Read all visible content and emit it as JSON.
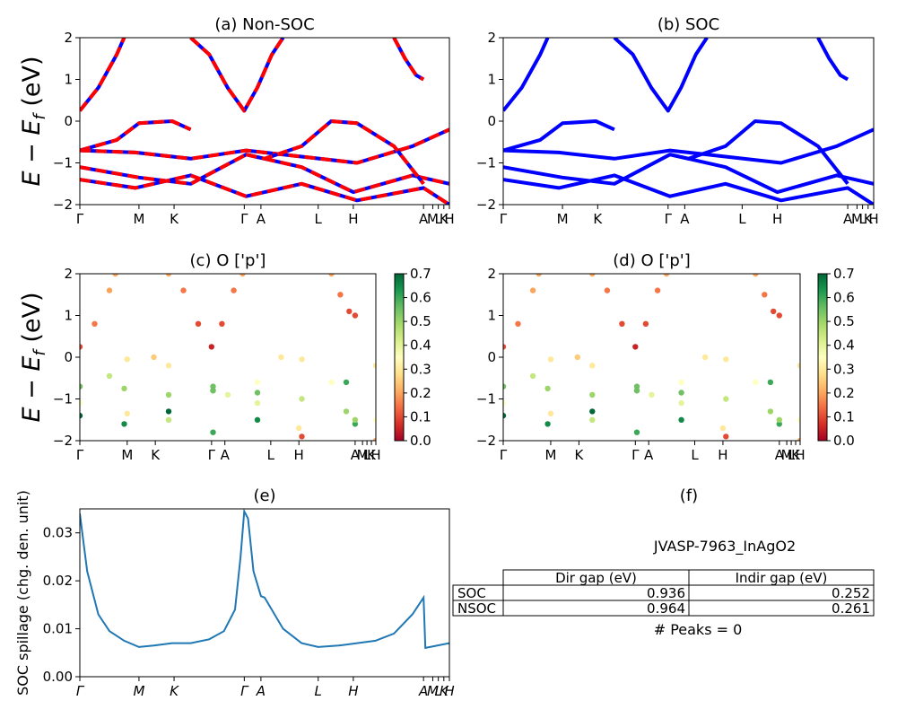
{
  "figure": {
    "ylabel": "E − E",
    "ylabel_sub": "f",
    "ylabel_unit": " (eV)"
  },
  "kpath": {
    "labels": [
      "Γ",
      "M",
      "K",
      "Γ",
      "A",
      "L",
      "H",
      "A",
      "M",
      "L",
      "K",
      "H"
    ],
    "positions": [
      0,
      0.16,
      0.255,
      0.445,
      0.49,
      0.645,
      0.74,
      0.93,
      0.955,
      0.97,
      0.985,
      1.0
    ],
    "show": [
      1,
      1,
      1,
      1,
      1,
      1,
      1,
      1,
      1,
      1,
      1,
      1
    ]
  },
  "colorbar": {
    "min": 0.0,
    "max": 0.7,
    "ticks": [
      "0.0",
      "0.1",
      "0.2",
      "0.3",
      "0.4",
      "0.5",
      "0.6",
      "0.7"
    ]
  },
  "table": {
    "title": "JVASP-7963_InAgO2",
    "headers": [
      "Dir gap (eV)",
      "Indir gap (eV)"
    ],
    "rows": [
      {
        "label": "SOC",
        "dir": "0.936",
        "indir": "0.252"
      },
      {
        "label": "NSOC",
        "dir": "0.964",
        "indir": "0.261"
      }
    ],
    "peaks": "# Peaks = 0"
  },
  "chart_data": [
    {
      "id": "a",
      "type": "line",
      "title": "(a) Non-SOC",
      "ylabel": "E − E_f (eV)",
      "ylim": [
        -2,
        2
      ],
      "yticks": [
        -2,
        -1,
        0,
        1,
        2
      ],
      "series": [
        {
          "x": [
            0,
            0.1,
            0.16,
            0.25,
            0.3
          ],
          "y": [
            -0.7,
            -0.45,
            -0.05,
            0.0,
            -0.2
          ]
        },
        {
          "x": [
            0,
            0.15,
            0.3,
            0.45,
            0.6,
            0.75,
            0.9,
            1.0
          ],
          "y": [
            -0.7,
            -0.75,
            -0.9,
            -0.7,
            -0.85,
            -1.0,
            -0.6,
            -0.2
          ]
        },
        {
          "x": [
            0,
            0.16,
            0.3,
            0.45,
            0.6,
            0.74,
            0.9,
            1.0
          ],
          "y": [
            -1.1,
            -1.35,
            -1.5,
            -0.8,
            -1.1,
            -1.7,
            -1.3,
            -1.5
          ]
        },
        {
          "x": [
            0,
            0.15,
            0.3,
            0.45,
            0.6,
            0.75,
            0.93,
            1.0
          ],
          "y": [
            -1.4,
            -1.6,
            -1.3,
            -1.8,
            -1.5,
            -1.9,
            -1.6,
            -2.0
          ]
        },
        {
          "x": [
            0.45,
            0.5,
            0.6,
            0.68,
            0.75,
            0.85,
            0.93
          ],
          "y": [
            -0.8,
            -0.9,
            -0.6,
            0.0,
            -0.05,
            -0.6,
            -1.5
          ]
        },
        {
          "x": [
            0.0,
            0.05,
            0.1,
            0.12
          ],
          "y": [
            0.25,
            0.8,
            1.6,
            2.0
          ]
        },
        {
          "x": [
            0.3,
            0.35,
            0.4,
            0.445,
            0.48,
            0.52,
            0.55
          ],
          "y": [
            2.0,
            1.6,
            0.8,
            0.25,
            0.8,
            1.6,
            2.0
          ]
        },
        {
          "x": [
            0.85,
            0.88,
            0.91,
            0.93
          ],
          "y": [
            2.0,
            1.5,
            1.1,
            1.0
          ]
        }
      ]
    },
    {
      "id": "b",
      "type": "line",
      "title": "(b) SOC",
      "ylim": [
        -2,
        2
      ],
      "yticks": [
        -2,
        -1,
        0,
        1,
        2
      ],
      "series": [
        {
          "x": [
            0,
            0.1,
            0.16,
            0.25,
            0.3
          ],
          "y": [
            -0.7,
            -0.45,
            -0.05,
            0.0,
            -0.2
          ]
        },
        {
          "x": [
            0,
            0.15,
            0.3,
            0.45,
            0.6,
            0.75,
            0.9,
            1.0
          ],
          "y": [
            -0.7,
            -0.75,
            -0.9,
            -0.7,
            -0.85,
            -1.0,
            -0.6,
            -0.2
          ]
        },
        {
          "x": [
            0,
            0.16,
            0.3,
            0.45,
            0.6,
            0.74,
            0.9,
            1.0
          ],
          "y": [
            -1.1,
            -1.35,
            -1.5,
            -0.8,
            -1.1,
            -1.7,
            -1.3,
            -1.5
          ]
        },
        {
          "x": [
            0,
            0.15,
            0.3,
            0.45,
            0.6,
            0.75,
            0.93,
            1.0
          ],
          "y": [
            -1.4,
            -1.6,
            -1.3,
            -1.8,
            -1.5,
            -1.9,
            -1.6,
            -2.0
          ]
        },
        {
          "x": [
            0.45,
            0.5,
            0.6,
            0.68,
            0.75,
            0.85,
            0.93
          ],
          "y": [
            -0.8,
            -0.9,
            -0.6,
            0.0,
            -0.05,
            -0.6,
            -1.5
          ]
        },
        {
          "x": [
            0.0,
            0.05,
            0.1,
            0.12
          ],
          "y": [
            0.25,
            0.8,
            1.6,
            2.0
          ]
        },
        {
          "x": [
            0.3,
            0.35,
            0.4,
            0.445,
            0.48,
            0.52,
            0.55
          ],
          "y": [
            2.0,
            1.6,
            0.8,
            0.25,
            0.8,
            1.6,
            2.0
          ]
        },
        {
          "x": [
            0.85,
            0.88,
            0.91,
            0.93
          ],
          "y": [
            2.0,
            1.5,
            1.1,
            1.0
          ]
        }
      ]
    },
    {
      "id": "c",
      "type": "scatter",
      "title": "(c)  O ['p']",
      "ylabel": "E − E_f (eV)",
      "ylim": [
        -2,
        2
      ],
      "yticks": [
        -2,
        -1,
        0,
        1,
        2
      ],
      "series": [
        {
          "x": [
            0,
            0.1,
            0.16,
            0.25,
            0.3
          ],
          "y": [
            -0.7,
            -0.45,
            -0.05,
            0.0,
            -0.2
          ],
          "c": [
            0.5,
            0.45,
            0.3,
            0.25,
            0.3
          ]
        },
        {
          "x": [
            0,
            0.15,
            0.3,
            0.45,
            0.6,
            0.75,
            0.9,
            1.0
          ],
          "y": [
            -0.7,
            -0.75,
            -0.9,
            -0.7,
            -0.85,
            -1.0,
            -0.6,
            -0.2
          ],
          "c": [
            0.55,
            0.5,
            0.5,
            0.55,
            0.55,
            0.45,
            0.6,
            0.3
          ]
        },
        {
          "x": [
            0,
            0.16,
            0.3,
            0.45,
            0.6,
            0.74,
            0.9,
            1.0
          ],
          "y": [
            -1.1,
            -1.35,
            -1.5,
            -0.8,
            -1.1,
            -1.7,
            -1.3,
            -1.5
          ],
          "c": [
            0.35,
            0.3,
            0.45,
            0.55,
            0.4,
            0.3,
            0.5,
            0.35
          ]
        },
        {
          "x": [
            0,
            0.15,
            0.3,
            0.45,
            0.6,
            0.75,
            0.93,
            1.0
          ],
          "y": [
            -1.4,
            -1.6,
            -1.3,
            -1.8,
            -1.5,
            -1.9,
            -1.6,
            -2.0
          ],
          "c": [
            0.7,
            0.65,
            0.7,
            0.6,
            0.65,
            0.1,
            0.6,
            0.2
          ]
        },
        {
          "x": [
            0.45,
            0.5,
            0.6,
            0.68,
            0.75,
            0.85,
            0.93
          ],
          "y": [
            -0.8,
            -0.9,
            -0.6,
            0.0,
            -0.05,
            -0.6,
            -1.5
          ],
          "c": [
            0.55,
            0.4,
            0.35,
            0.3,
            0.3,
            0.35,
            0.5
          ]
        },
        {
          "x": [
            0.0,
            0.05,
            0.1,
            0.12
          ],
          "y": [
            0.25,
            0.8,
            1.6,
            2.0
          ],
          "c": [
            0.1,
            0.15,
            0.2,
            0.2
          ]
        },
        {
          "x": [
            0.3,
            0.35,
            0.4,
            0.445,
            0.48,
            0.52,
            0.55
          ],
          "y": [
            2.0,
            1.6,
            0.8,
            0.25,
            0.8,
            1.6,
            2.0
          ],
          "c": [
            0.2,
            0.15,
            0.1,
            0.05,
            0.1,
            0.15,
            0.2
          ]
        },
        {
          "x": [
            0.85,
            0.88,
            0.91,
            0.93
          ],
          "y": [
            2.0,
            1.5,
            1.1,
            1.0
          ],
          "c": [
            0.2,
            0.15,
            0.1,
            0.1
          ]
        }
      ]
    },
    {
      "id": "d",
      "type": "scatter",
      "title": "(d) O ['p']",
      "ylim": [
        -2,
        2
      ],
      "yticks": [
        -2,
        -1,
        0,
        1,
        2
      ],
      "series": [
        {
          "x": [
            0,
            0.1,
            0.16,
            0.25,
            0.3
          ],
          "y": [
            -0.7,
            -0.45,
            -0.05,
            0.0,
            -0.2
          ],
          "c": [
            0.5,
            0.45,
            0.3,
            0.25,
            0.3
          ]
        },
        {
          "x": [
            0,
            0.15,
            0.3,
            0.45,
            0.6,
            0.75,
            0.9,
            1.0
          ],
          "y": [
            -0.7,
            -0.75,
            -0.9,
            -0.7,
            -0.85,
            -1.0,
            -0.6,
            -0.2
          ],
          "c": [
            0.55,
            0.5,
            0.5,
            0.55,
            0.55,
            0.45,
            0.6,
            0.3
          ]
        },
        {
          "x": [
            0,
            0.16,
            0.3,
            0.45,
            0.6,
            0.74,
            0.9,
            1.0
          ],
          "y": [
            -1.1,
            -1.35,
            -1.5,
            -0.8,
            -1.1,
            -1.7,
            -1.3,
            -1.5
          ],
          "c": [
            0.35,
            0.3,
            0.45,
            0.55,
            0.4,
            0.3,
            0.5,
            0.35
          ]
        },
        {
          "x": [
            0,
            0.15,
            0.3,
            0.45,
            0.6,
            0.75,
            0.93,
            1.0
          ],
          "y": [
            -1.4,
            -1.6,
            -1.3,
            -1.8,
            -1.5,
            -1.9,
            -1.6,
            -2.0
          ],
          "c": [
            0.7,
            0.65,
            0.7,
            0.6,
            0.65,
            0.1,
            0.6,
            0.2
          ]
        },
        {
          "x": [
            0.45,
            0.5,
            0.6,
            0.68,
            0.75,
            0.85,
            0.93
          ],
          "y": [
            -0.8,
            -0.9,
            -0.6,
            0.0,
            -0.05,
            -0.6,
            -1.5
          ],
          "c": [
            0.55,
            0.4,
            0.35,
            0.3,
            0.3,
            0.35,
            0.5
          ]
        },
        {
          "x": [
            0.0,
            0.05,
            0.1,
            0.12
          ],
          "y": [
            0.25,
            0.8,
            1.6,
            2.0
          ],
          "c": [
            0.1,
            0.15,
            0.2,
            0.2
          ]
        },
        {
          "x": [
            0.3,
            0.35,
            0.4,
            0.445,
            0.48,
            0.52,
            0.55
          ],
          "y": [
            2.0,
            1.6,
            0.8,
            0.25,
            0.8,
            1.6,
            2.0
          ],
          "c": [
            0.2,
            0.15,
            0.1,
            0.05,
            0.1,
            0.15,
            0.2
          ]
        },
        {
          "x": [
            0.85,
            0.88,
            0.91,
            0.93
          ],
          "y": [
            2.0,
            1.5,
            1.1,
            1.0
          ],
          "c": [
            0.2,
            0.15,
            0.1,
            0.1
          ]
        }
      ]
    },
    {
      "id": "e",
      "type": "line",
      "title": "(e)",
      "ylabel": "SOC spillage (chg. den. unit)",
      "ylim": [
        0,
        0.035
      ],
      "yticks": [
        0.0,
        0.01,
        0.02,
        0.03
      ],
      "ytick_labels": [
        "0.00",
        "0.01",
        "0.02",
        "0.03"
      ],
      "x": [
        0,
        0.02,
        0.05,
        0.08,
        0.12,
        0.16,
        0.2,
        0.25,
        0.3,
        0.35,
        0.39,
        0.42,
        0.435,
        0.445,
        0.455,
        0.47,
        0.49,
        0.5,
        0.55,
        0.6,
        0.645,
        0.7,
        0.75,
        0.8,
        0.85,
        0.9,
        0.93,
        0.935,
        1.0
      ],
      "y": [
        0.034,
        0.022,
        0.013,
        0.0095,
        0.0075,
        0.0062,
        0.0065,
        0.007,
        0.007,
        0.0078,
        0.0095,
        0.014,
        0.025,
        0.0345,
        0.033,
        0.022,
        0.0168,
        0.0165,
        0.01,
        0.007,
        0.0062,
        0.0065,
        0.007,
        0.0075,
        0.009,
        0.013,
        0.0165,
        0.006,
        0.007
      ]
    }
  ]
}
